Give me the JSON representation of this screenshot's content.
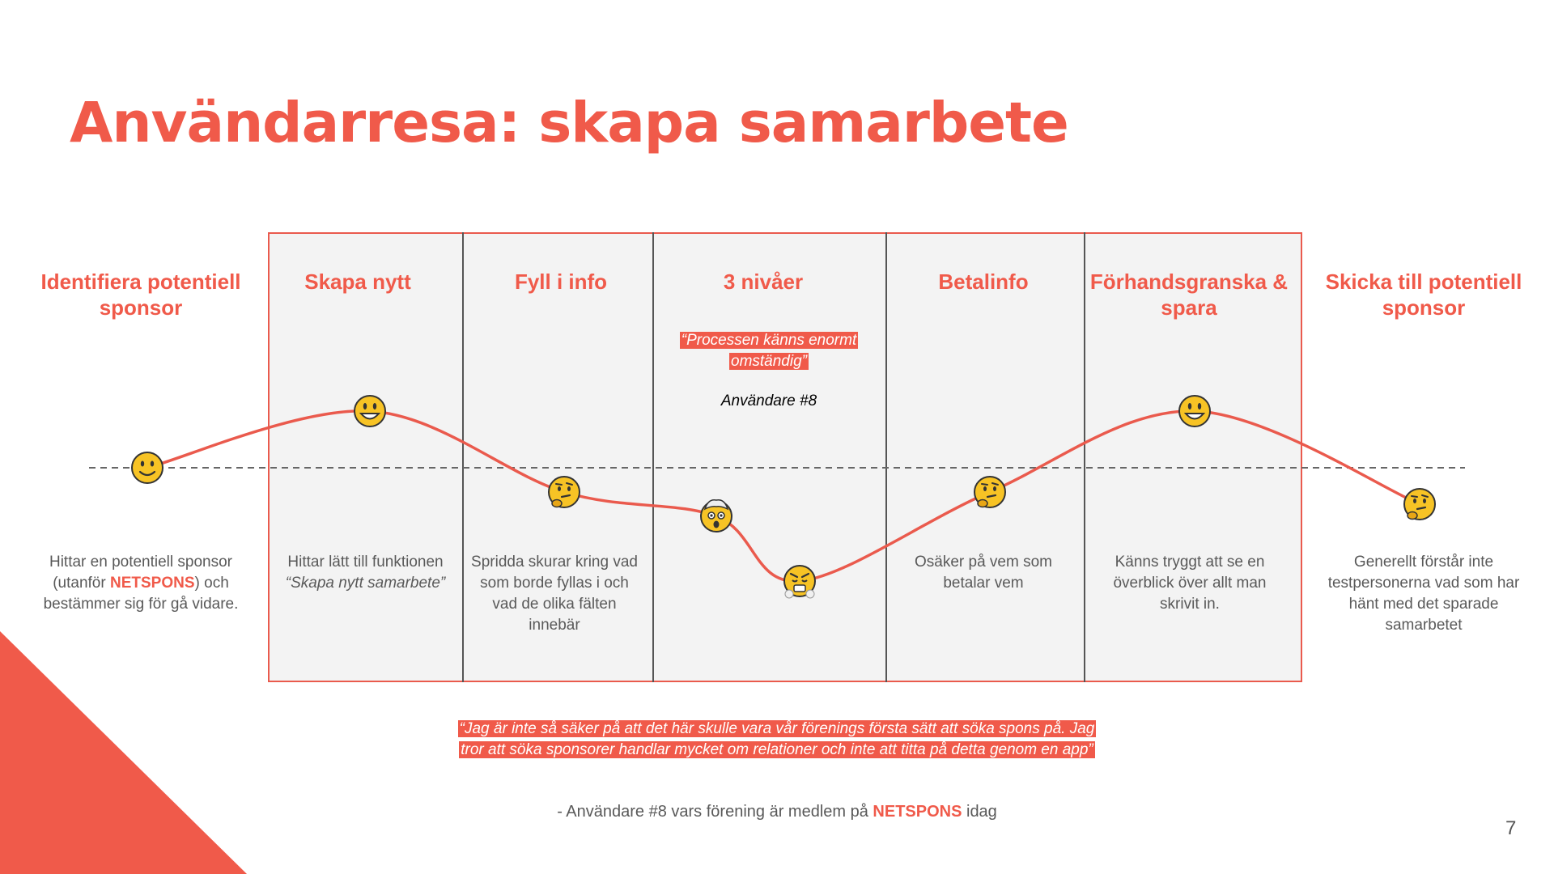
{
  "title": "Användarresa: skapa samarbete",
  "stages": [
    {
      "title": "Identifiera potentiell sponsor",
      "desc_parts": [
        "Hittar en potentiell sponsor (utanför ",
        "NETSPONS",
        ") och bestämmer sig för gå vidare."
      ],
      "emotion": "smiling-face"
    },
    {
      "title": "Skapa nytt",
      "desc": "Hittar lätt till funktionen",
      "desc_italic": "“Skapa nytt samarbete”",
      "emotion": "grinning-face"
    },
    {
      "title": "Fyll i info",
      "desc": "Spridda skurar kring vad som borde fyllas i och vad de olika fälten innebär",
      "emotion": "thinking-face"
    },
    {
      "title": "3 nivåer",
      "emotion": "exploding-head"
    },
    {
      "title": "",
      "emotion": "angry-face"
    },
    {
      "title": "Betalinfo",
      "desc": "Osäker på vem som betalar vem",
      "emotion": "thinking-face"
    },
    {
      "title": "Förhandsgranska & spara",
      "desc": "Känns tryggt att se en överblick över allt man skrivit in.",
      "emotion": "grinning-face"
    },
    {
      "title": "Skicka till potentiell sponsor",
      "desc": "Generellt förstår inte testpersonerna vad som har hänt med det sparade samarbetet",
      "emotion": "thinking-face"
    }
  ],
  "quote_top": "“Processen känns enormt omständig”",
  "quote_top_attribution": "Användare #8",
  "quote_bottom": "“Jag är inte så säker på att det här skulle vara vår förenings första sätt att söka spons på. Jag tror att söka sponsorer handlar mycket om relationer och inte att titta på detta genom en app”",
  "quote_bottom_attribution_parts": [
    "- Användare #8 vars förening är medlem på ",
    "NETSPONS",
    " idag"
  ],
  "page_number": "7",
  "colors": {
    "accent": "#f05a4a",
    "frame_bg": "#f3f3f3",
    "text_gray": "#595959"
  },
  "chart_data": {
    "type": "line",
    "x": [
      "Identifiera potentiell sponsor",
      "Skapa nytt",
      "Fyll i info",
      "3 nivåer",
      "3 nivåer",
      "Betalinfo",
      "Förhandsgranska & spara",
      "Skicka till potentiell sponsor"
    ],
    "values": [
      0,
      0.7,
      -0.3,
      -0.6,
      -1.4,
      -0.3,
      0.7,
      -0.45
    ],
    "baseline": 0
  }
}
